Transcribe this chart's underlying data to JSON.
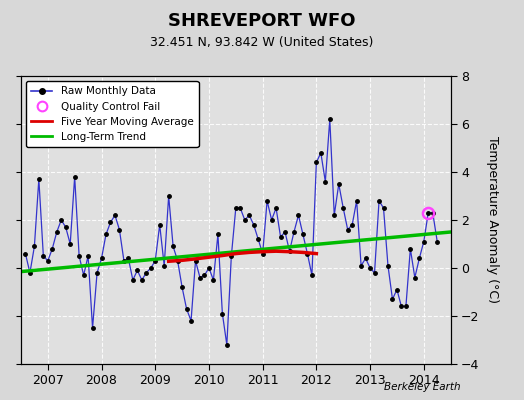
{
  "title": "SHREVEPORT WFO",
  "subtitle": "32.451 N, 93.842 W (United States)",
  "ylabel": "Temperature Anomaly (°C)",
  "credit": "Berkeley Earth",
  "ylim": [
    -4,
    8
  ],
  "yticks": [
    -4,
    -2,
    0,
    2,
    4,
    6,
    8
  ],
  "xlim": [
    2006.5,
    2014.5
  ],
  "xticks": [
    2007,
    2008,
    2009,
    2010,
    2011,
    2012,
    2013,
    2014
  ],
  "bg_color": "#d8d8d8",
  "plot_bg_color": "#e0e0e0",
  "grid_color": "#ffffff",
  "raw_color": "#3333cc",
  "trend_color": "#00bb00",
  "mavg_color": "#dd0000",
  "qc_color": "#ff44ff",
  "raw_data_x": [
    2006.583,
    2006.667,
    2006.75,
    2006.833,
    2006.917,
    2007.0,
    2007.083,
    2007.167,
    2007.25,
    2007.333,
    2007.417,
    2007.5,
    2007.583,
    2007.667,
    2007.75,
    2007.833,
    2007.917,
    2008.0,
    2008.083,
    2008.167,
    2008.25,
    2008.333,
    2008.417,
    2008.5,
    2008.583,
    2008.667,
    2008.75,
    2008.833,
    2008.917,
    2009.0,
    2009.083,
    2009.167,
    2009.25,
    2009.333,
    2009.417,
    2009.5,
    2009.583,
    2009.667,
    2009.75,
    2009.833,
    2009.917,
    2010.0,
    2010.083,
    2010.167,
    2010.25,
    2010.333,
    2010.417,
    2010.5,
    2010.583,
    2010.667,
    2010.75,
    2010.833,
    2010.917,
    2011.0,
    2011.083,
    2011.167,
    2011.25,
    2011.333,
    2011.417,
    2011.5,
    2011.583,
    2011.667,
    2011.75,
    2011.833,
    2011.917,
    2012.0,
    2012.083,
    2012.167,
    2012.25,
    2012.333,
    2012.417,
    2012.5,
    2012.583,
    2012.667,
    2012.75,
    2012.833,
    2012.917,
    2013.0,
    2013.083,
    2013.167,
    2013.25,
    2013.333,
    2013.417,
    2013.5,
    2013.583,
    2013.667,
    2013.75,
    2013.833,
    2013.917,
    2014.0,
    2014.083,
    2014.167,
    2014.25
  ],
  "raw_data_y": [
    0.6,
    -0.2,
    0.9,
    3.7,
    0.5,
    0.3,
    0.8,
    1.5,
    2.0,
    1.7,
    1.0,
    3.8,
    0.5,
    -0.3,
    0.5,
    -2.5,
    -0.2,
    0.4,
    1.4,
    1.9,
    2.2,
    1.6,
    0.3,
    0.4,
    -0.5,
    -0.1,
    -0.5,
    -0.2,
    0.0,
    0.3,
    1.8,
    0.1,
    3.0,
    0.9,
    0.3,
    -0.8,
    -1.7,
    -2.2,
    0.3,
    -0.4,
    -0.3,
    0.0,
    -0.5,
    1.4,
    -1.9,
    -3.2,
    0.5,
    2.5,
    2.5,
    2.0,
    2.2,
    1.8,
    1.2,
    0.6,
    2.8,
    2.0,
    2.5,
    1.3,
    1.5,
    0.7,
    1.5,
    2.2,
    1.4,
    0.6,
    -0.3,
    4.4,
    4.8,
    3.6,
    6.2,
    2.2,
    3.5,
    2.5,
    1.6,
    1.8,
    2.8,
    0.1,
    0.4,
    0.0,
    -0.2,
    2.8,
    2.5,
    0.1,
    -1.3,
    -0.9,
    -1.6,
    -1.6,
    0.8,
    -0.4,
    0.4,
    1.1,
    2.3,
    2.3,
    1.1
  ],
  "qc_fail_x": [
    2014.083
  ],
  "qc_fail_y": [
    2.3
  ],
  "mavg_x": [
    2009.25,
    2009.5,
    2009.75,
    2010.0,
    2010.25,
    2010.5,
    2010.75,
    2011.0,
    2011.25,
    2011.5,
    2011.75,
    2012.0
  ],
  "mavg_y": [
    0.28,
    0.32,
    0.38,
    0.45,
    0.52,
    0.6,
    0.65,
    0.68,
    0.7,
    0.68,
    0.65,
    0.6
  ],
  "trend_x": [
    2006.5,
    2014.5
  ],
  "trend_y": [
    -0.15,
    1.5
  ]
}
